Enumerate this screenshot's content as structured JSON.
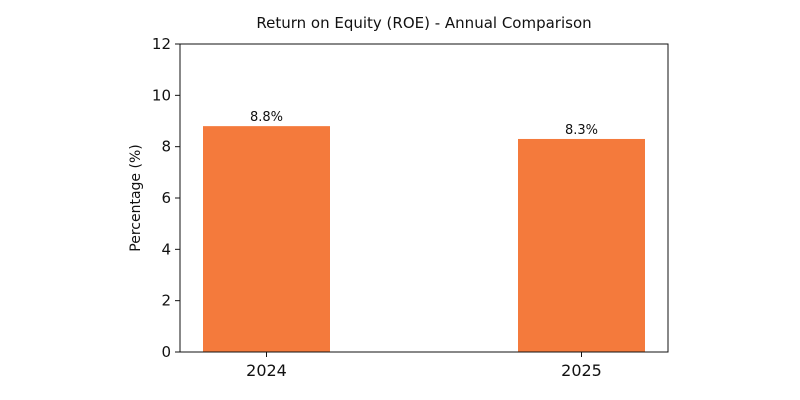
{
  "chart_data": {
    "type": "bar",
    "title": "Return on Equity (ROE) - Annual Comparison",
    "xlabel": "",
    "ylabel": "Percentage (%)",
    "categories": [
      "2024",
      "2025"
    ],
    "values": [
      8.8,
      8.3
    ],
    "data_labels": [
      "8.8%",
      "8.3%"
    ],
    "ylim": [
      0,
      12
    ],
    "yticks": [
      0,
      2,
      4,
      6,
      8,
      10,
      12
    ],
    "ytick_labels": [
      "0",
      "2",
      "4",
      "6",
      "8",
      "10",
      "12"
    ],
    "bar_color": "#F47A3C",
    "grid": false,
    "legend": "none"
  }
}
